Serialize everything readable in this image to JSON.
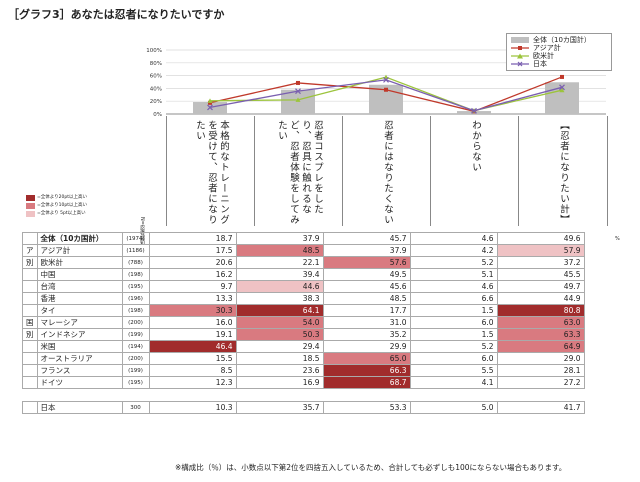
{
  "page": {
    "title": "［グラフ3］あなたは忍者になりたいですか",
    "footer": "※構成比（％）は、小数点以下第2位を四捨五入しているため、合計しても必ずしも100にならない場合もあります。",
    "pct_mark": "%"
  },
  "mini_legend": {
    "items": [
      {
        "label": "=全体より20pt以上高い",
        "color": "#a12c2c"
      },
      {
        "label": "=全体より10pt以上高い",
        "color": "#d97a80"
      },
      {
        "label": "=全体より 5pt以上高い",
        "color": "#efc2c4"
      }
    ],
    "base_label": "N=忍者認知"
  },
  "chart_data": {
    "type": "bar",
    "categories": [
      "本格的なトレーニングを受けて、忍者になりたい",
      "忍者コスプレをしたり、忍具に触れるなど、忍者体験をしてみたい",
      "忍者にはなりたくない",
      "わからない",
      "【忍者になりたい計】"
    ],
    "ylim": [
      0,
      100
    ],
    "yticks": [
      "0%",
      "20%",
      "40%",
      "60%",
      "80%",
      "100%"
    ],
    "bar_series": {
      "name": "全体（10カ国計）",
      "values": [
        18.7,
        37.9,
        45.7,
        4.6,
        49.6
      ],
      "color": "#bfbfbf"
    },
    "line_series": [
      {
        "name": "アジア計",
        "values": [
          17.5,
          48.5,
          37.9,
          4.2,
          57.9
        ],
        "color": "#c0392b"
      },
      {
        "name": "欧米計",
        "values": [
          20.6,
          22.1,
          57.6,
          5.2,
          37.2
        ],
        "color": "#9cc43c"
      },
      {
        "name": "日本",
        "values": [
          10.3,
          35.7,
          53.3,
          5.0,
          41.7
        ],
        "color": "#7a5fb0"
      }
    ],
    "legend_position": "top-right"
  },
  "table": {
    "rows": [
      {
        "group": "",
        "label": "全体（10カ国計）",
        "base": "(1974)",
        "values": [
          "18.7",
          "37.9",
          "45.7",
          "4.6",
          "49.6"
        ],
        "bold": true
      },
      {
        "group": "ア",
        "label": "アジア計",
        "base": "(1186)",
        "values": [
          "17.5",
          "48.5",
          "37.9",
          "4.2",
          "57.9"
        ]
      },
      {
        "group": "別",
        "label": "欧米計",
        "base": "(788)",
        "values": [
          "20.6",
          "22.1",
          "57.6",
          "5.2",
          "37.2"
        ]
      },
      {
        "group": "",
        "label": "中国",
        "base": "(198)",
        "values": [
          "16.2",
          "39.4",
          "49.5",
          "5.1",
          "45.5"
        ]
      },
      {
        "group": "",
        "label": "台湾",
        "base": "(195)",
        "values": [
          "9.7",
          "44.6",
          "45.6",
          "4.6",
          "49.7"
        ]
      },
      {
        "group": "",
        "label": "香港",
        "base": "(196)",
        "values": [
          "13.3",
          "38.3",
          "48.5",
          "6.6",
          "44.9"
        ]
      },
      {
        "group": "",
        "label": "タイ",
        "base": "(198)",
        "values": [
          "30.3",
          "64.1",
          "17.7",
          "1.5",
          "80.8"
        ]
      },
      {
        "group": "国",
        "label": "マレーシア",
        "base": "(200)",
        "values": [
          "16.0",
          "54.0",
          "31.0",
          "6.0",
          "63.0"
        ]
      },
      {
        "group": "別",
        "label": "インドネシア",
        "base": "(199)",
        "values": [
          "19.1",
          "50.3",
          "35.2",
          "1.5",
          "63.3"
        ]
      },
      {
        "group": "",
        "label": "米国",
        "base": "(194)",
        "values": [
          "46.4",
          "29.4",
          "29.9",
          "5.2",
          "64.9"
        ]
      },
      {
        "group": "",
        "label": "オーストラリア",
        "base": "(200)",
        "values": [
          "15.5",
          "18.5",
          "65.0",
          "6.0",
          "29.0"
        ]
      },
      {
        "group": "",
        "label": "フランス",
        "base": "(199)",
        "values": [
          "8.5",
          "23.6",
          "66.3",
          "5.5",
          "28.1"
        ]
      },
      {
        "group": "",
        "label": "ドイツ",
        "base": "(195)",
        "values": [
          "12.3",
          "16.9",
          "68.7",
          "4.1",
          "27.2"
        ]
      }
    ],
    "japan_row": {
      "label": "日本",
      "base": "300",
      "values": [
        "10.3",
        "35.7",
        "53.3",
        "5.0",
        "41.7"
      ]
    }
  }
}
